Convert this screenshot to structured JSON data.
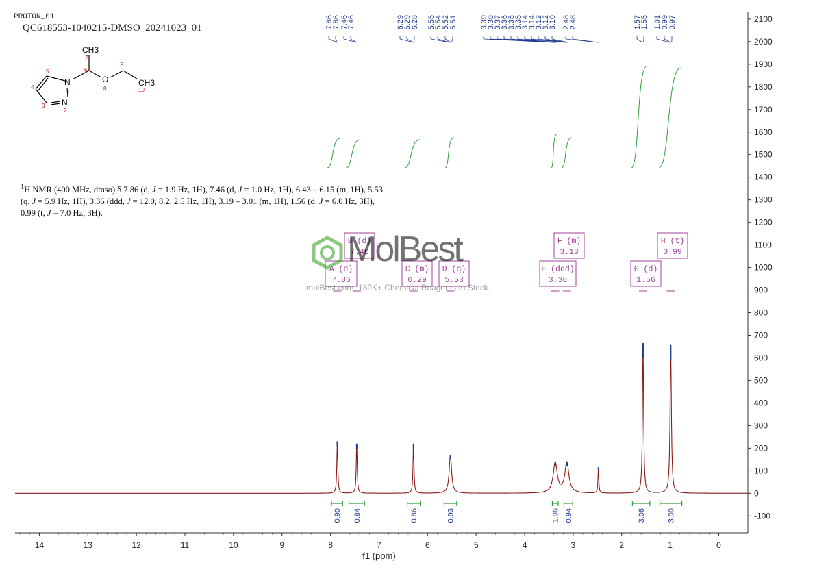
{
  "header": {
    "experiment": "PROTON_01",
    "sample": "QC618553-1040215-DMSO_20241023_01"
  },
  "summary": {
    "prefix": "1",
    "text1": "H NMR (400 MHz, dmso) δ 7.86 (d, ",
    "j1": "J",
    "text2": " = 1.9 Hz, 1H), 7.46 (d, ",
    "j2": "J",
    "text3": " = 1.0 Hz, 1H), 6.43 – 6.15 (m, 1H), 5.53",
    "text4": "(q, ",
    "j3": "J",
    "text5": " = 5.9 Hz, 1H), 3.36 (ddd, ",
    "j4": "J",
    "text6": " = 12.0, 8.2, 2.5 Hz, 1H), 3.19 – 3.01 (m, 1H), 1.56 (d, ",
    "j5": "J",
    "text7": " = 6.0 Hz, 3H),",
    "text8": "0.99 (t, ",
    "j6": "J",
    "text9": " = 7.0 Hz, 3H)."
  },
  "watermark": {
    "brand": "MolBest",
    "tagline": "molBest.com, 180K+ Chemical Reagents In Stock."
  },
  "structure": {
    "atoms": [
      "CH3",
      "7",
      "6",
      "5",
      "N",
      "1",
      "4",
      "3",
      "N",
      "2",
      "O",
      "8",
      "9",
      "CH3",
      "10"
    ]
  },
  "chart_data": {
    "type": "line",
    "xlabel": "f1 (ppm)",
    "xlim": [
      14.5,
      -0.6
    ],
    "ylim": [
      -175,
      2130
    ],
    "x_ticks": [
      14,
      13,
      12,
      11,
      10,
      9,
      8,
      7,
      6,
      5,
      4,
      3,
      2,
      1,
      0
    ],
    "y_ticks": [
      -100,
      0,
      100,
      200,
      300,
      400,
      500,
      600,
      700,
      800,
      900,
      1000,
      1100,
      1200,
      1300,
      1400,
      1500,
      1600,
      1700,
      1800,
      1900,
      2000,
      2100
    ],
    "peaks": [
      {
        "ppm": 7.86,
        "height": 230,
        "mult": "d",
        "width": 0.012
      },
      {
        "ppm": 7.46,
        "height": 220,
        "mult": "d",
        "width": 0.012
      },
      {
        "ppm": 6.29,
        "height": 220,
        "mult": "m",
        "width": 0.012
      },
      {
        "ppm": 5.53,
        "height": 170,
        "mult": "q",
        "width": 0.03
      },
      {
        "ppm": 3.37,
        "height": 135,
        "mult": "ddd",
        "width": 0.05
      },
      {
        "ppm": 3.13,
        "height": 135,
        "mult": "m",
        "width": 0.05
      },
      {
        "ppm": 2.48,
        "height": 115,
        "mult": "s",
        "width": 0.01
      },
      {
        "ppm": 1.56,
        "height": 665,
        "mult": "d",
        "width": 0.014
      },
      {
        "ppm": 0.99,
        "height": 660,
        "mult": "t",
        "width": 0.016
      }
    ],
    "peak_picks": {
      "group1": [
        "7.86",
        "7.86",
        "7.46",
        "7.46"
      ],
      "group2": [
        "6.29",
        "6.29",
        "6.28",
        "5.55",
        "5.54",
        "5.52",
        "5.51"
      ],
      "group3": [
        "3.39",
        "3.38",
        "3.37",
        "3.36",
        "3.35",
        "3.35",
        "3.14",
        "3.14",
        "3.12",
        "3.12",
        "3.10",
        "2.48",
        "2.48"
      ],
      "group4": [
        "1.57",
        "1.55",
        "1.01",
        "0.99",
        "0.97"
      ]
    },
    "multiplets": [
      {
        "label": "A (d)",
        "value": "7.86"
      },
      {
        "label": "B (d)",
        "value": "7.46"
      },
      {
        "label": "C (m)",
        "value": "6.29"
      },
      {
        "label": "D (q)",
        "value": "5.53"
      },
      {
        "label": "E (ddd)",
        "value": "3.36"
      },
      {
        "label": "F (m)",
        "value": "3.13"
      },
      {
        "label": "G (d)",
        "value": "1.56"
      },
      {
        "label": "H (t)",
        "value": "0.99"
      }
    ],
    "integrals": [
      {
        "from": 7.98,
        "to": 7.75,
        "value": "0.90"
      },
      {
        "from": 7.62,
        "to": 7.3,
        "value": "0.84"
      },
      {
        "from": 6.42,
        "to": 6.15,
        "value": "0.86"
      },
      {
        "from": 5.66,
        "to": 5.4,
        "value": "0.93"
      },
      {
        "from": 3.43,
        "to": 3.31,
        "value": "1.06"
      },
      {
        "from": 3.19,
        "to": 3.01,
        "value": "0.94"
      },
      {
        "from": 1.78,
        "to": 1.42,
        "value": "3.06"
      },
      {
        "from": 1.21,
        "to": 0.76,
        "value": "3.00"
      }
    ],
    "colors": {
      "spectrum": "#8b1a1a",
      "peak_label": "#1f3b8f",
      "integral": "#2e9e3a",
      "multiplet": "#a0409e",
      "axis": "#333333"
    }
  }
}
